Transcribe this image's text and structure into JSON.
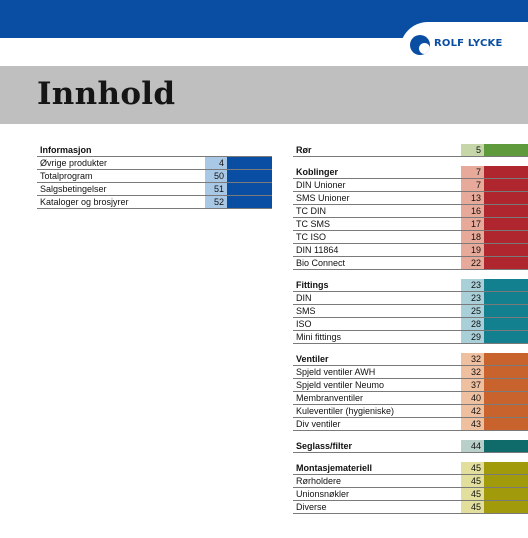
{
  "header": {
    "brand": "ROLF LYCKE",
    "title": "Innhold"
  },
  "colors": {
    "blue_top": "#0a4ea3",
    "gray_band": "#bfbfbf"
  },
  "left_table": {
    "heading": "Informasjon",
    "rows": [
      {
        "label": "Øvrige produkter",
        "page": "4"
      },
      {
        "label": "Totalprogram",
        "page": "50"
      },
      {
        "label": "Salgsbetingelser",
        "page": "51"
      },
      {
        "label": "Kataloger og brosjyrer",
        "page": "52"
      }
    ],
    "num_color": "#a9c8e6",
    "bar_color": "#0a4ea3"
  },
  "right_table": {
    "groups": [
      {
        "heading": "Rør",
        "page": "5",
        "num_color": "#c6d6a8",
        "bar_color": "#5f9a3c",
        "rows": []
      },
      {
        "heading": "Koblinger",
        "page": "7",
        "num_color": "#e7a999",
        "bar_color": "#b0262e",
        "rows": [
          {
            "label": "DIN Unioner",
            "page": "7"
          },
          {
            "label": "SMS Unioner",
            "page": "13"
          },
          {
            "label": "TC DIN",
            "page": "16"
          },
          {
            "label": "TC SMS",
            "page": "17"
          },
          {
            "label": "TC ISO",
            "page": "18"
          },
          {
            "label": "DIN 11864",
            "page": "19"
          },
          {
            "label": "Bio Connect",
            "page": "22"
          }
        ]
      },
      {
        "heading": "Fittings",
        "page": "23",
        "num_color": "#a9cfd8",
        "bar_color": "#13808f",
        "rows": [
          {
            "label": "DIN",
            "page": "23"
          },
          {
            "label": "SMS",
            "page": "25"
          },
          {
            "label": "ISO",
            "page": "28"
          },
          {
            "label": "Mini fittings",
            "page": "29"
          }
        ]
      },
      {
        "heading": "Ventiler",
        "page": "32",
        "num_color": "#efc0a0",
        "bar_color": "#c8632e",
        "rows": [
          {
            "label": "Spjeld ventiler AWH",
            "page": "32"
          },
          {
            "label": "Spjeld ventiler Neumo",
            "page": "37"
          },
          {
            "label": "Membranventiler",
            "page": "40"
          },
          {
            "label": "Kuleventiler (hygieniske)",
            "page": "42"
          },
          {
            "label": "Div ventiler",
            "page": "43"
          }
        ]
      },
      {
        "heading": "Seglass/filter",
        "page": "44",
        "num_color": "#b8cfca",
        "bar_color": "#0e6b6a",
        "rows": []
      },
      {
        "heading": "Montasjemateriell",
        "page": "45",
        "num_color": "#e2df9c",
        "bar_color": "#a19b0c",
        "rows": [
          {
            "label": "Rørholdere",
            "page": "45"
          },
          {
            "label": "Unionsnøkler",
            "page": "45"
          },
          {
            "label": "Diverse",
            "page": "45"
          }
        ]
      }
    ]
  }
}
